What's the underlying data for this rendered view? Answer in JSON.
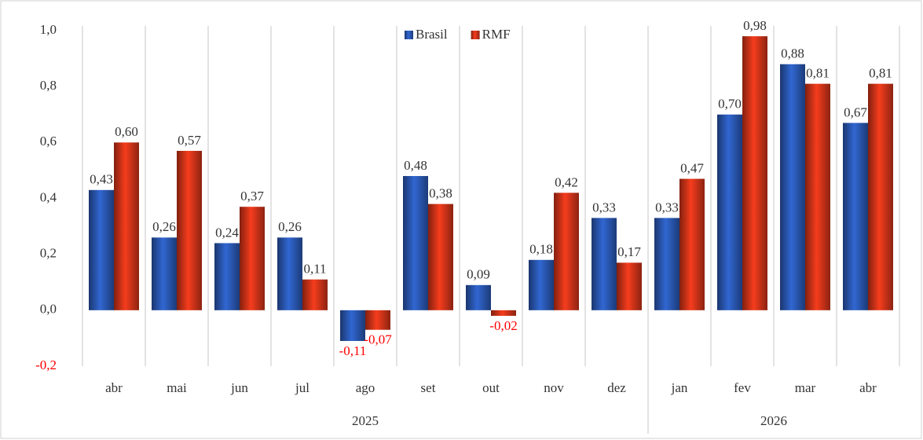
{
  "chart_data": {
    "type": "bar",
    "categories": [
      "abr",
      "mai",
      "jun",
      "jul",
      "ago",
      "set",
      "out",
      "nov",
      "dez",
      "jan",
      "fev",
      "mar",
      "abr"
    ],
    "x_groups": [
      {
        "label": "2025",
        "span": 9
      },
      {
        "label": "2026",
        "span": 4
      }
    ],
    "series": [
      {
        "name": "Brasil",
        "color": "#2f62c8",
        "values": [
          0.43,
          0.26,
          0.24,
          0.26,
          -0.11,
          0.48,
          0.09,
          0.18,
          0.33,
          0.33,
          0.7,
          0.88,
          0.67
        ],
        "value_labels": [
          "0,43",
          "0,26",
          "0,24",
          "0,26",
          "-0,11",
          "0,48",
          "0,09",
          "0,18",
          "0,33",
          "0,33",
          "0,70",
          "0,88",
          "0,67"
        ]
      },
      {
        "name": "RMF",
        "color": "#ea3a1c",
        "values": [
          0.6,
          0.57,
          0.37,
          0.11,
          -0.07,
          0.38,
          -0.02,
          0.42,
          0.17,
          0.47,
          0.98,
          0.81,
          0.81
        ],
        "value_labels": [
          "0,60",
          "0,57",
          "0,37",
          "0,11",
          "-0,07",
          "0,38",
          "-0,02",
          "0,42",
          "0,17",
          "0,47",
          "0,98",
          "0,81",
          "0,81"
        ]
      }
    ],
    "ylim": [
      -0.2,
      1.0
    ],
    "yticks": [
      {
        "value": -0.2,
        "label": "-0,2"
      },
      {
        "value": 0,
        "label": "0,0"
      },
      {
        "value": 0.2,
        "label": "0,2"
      },
      {
        "value": 0.4,
        "label": "0,4"
      },
      {
        "value": 0.6,
        "label": "0,6"
      },
      {
        "value": 0.8,
        "label": "0,8"
      },
      {
        "value": 1.0,
        "label": "1,0"
      }
    ],
    "negative_label_color": "#ff0000",
    "legend": "top"
  }
}
